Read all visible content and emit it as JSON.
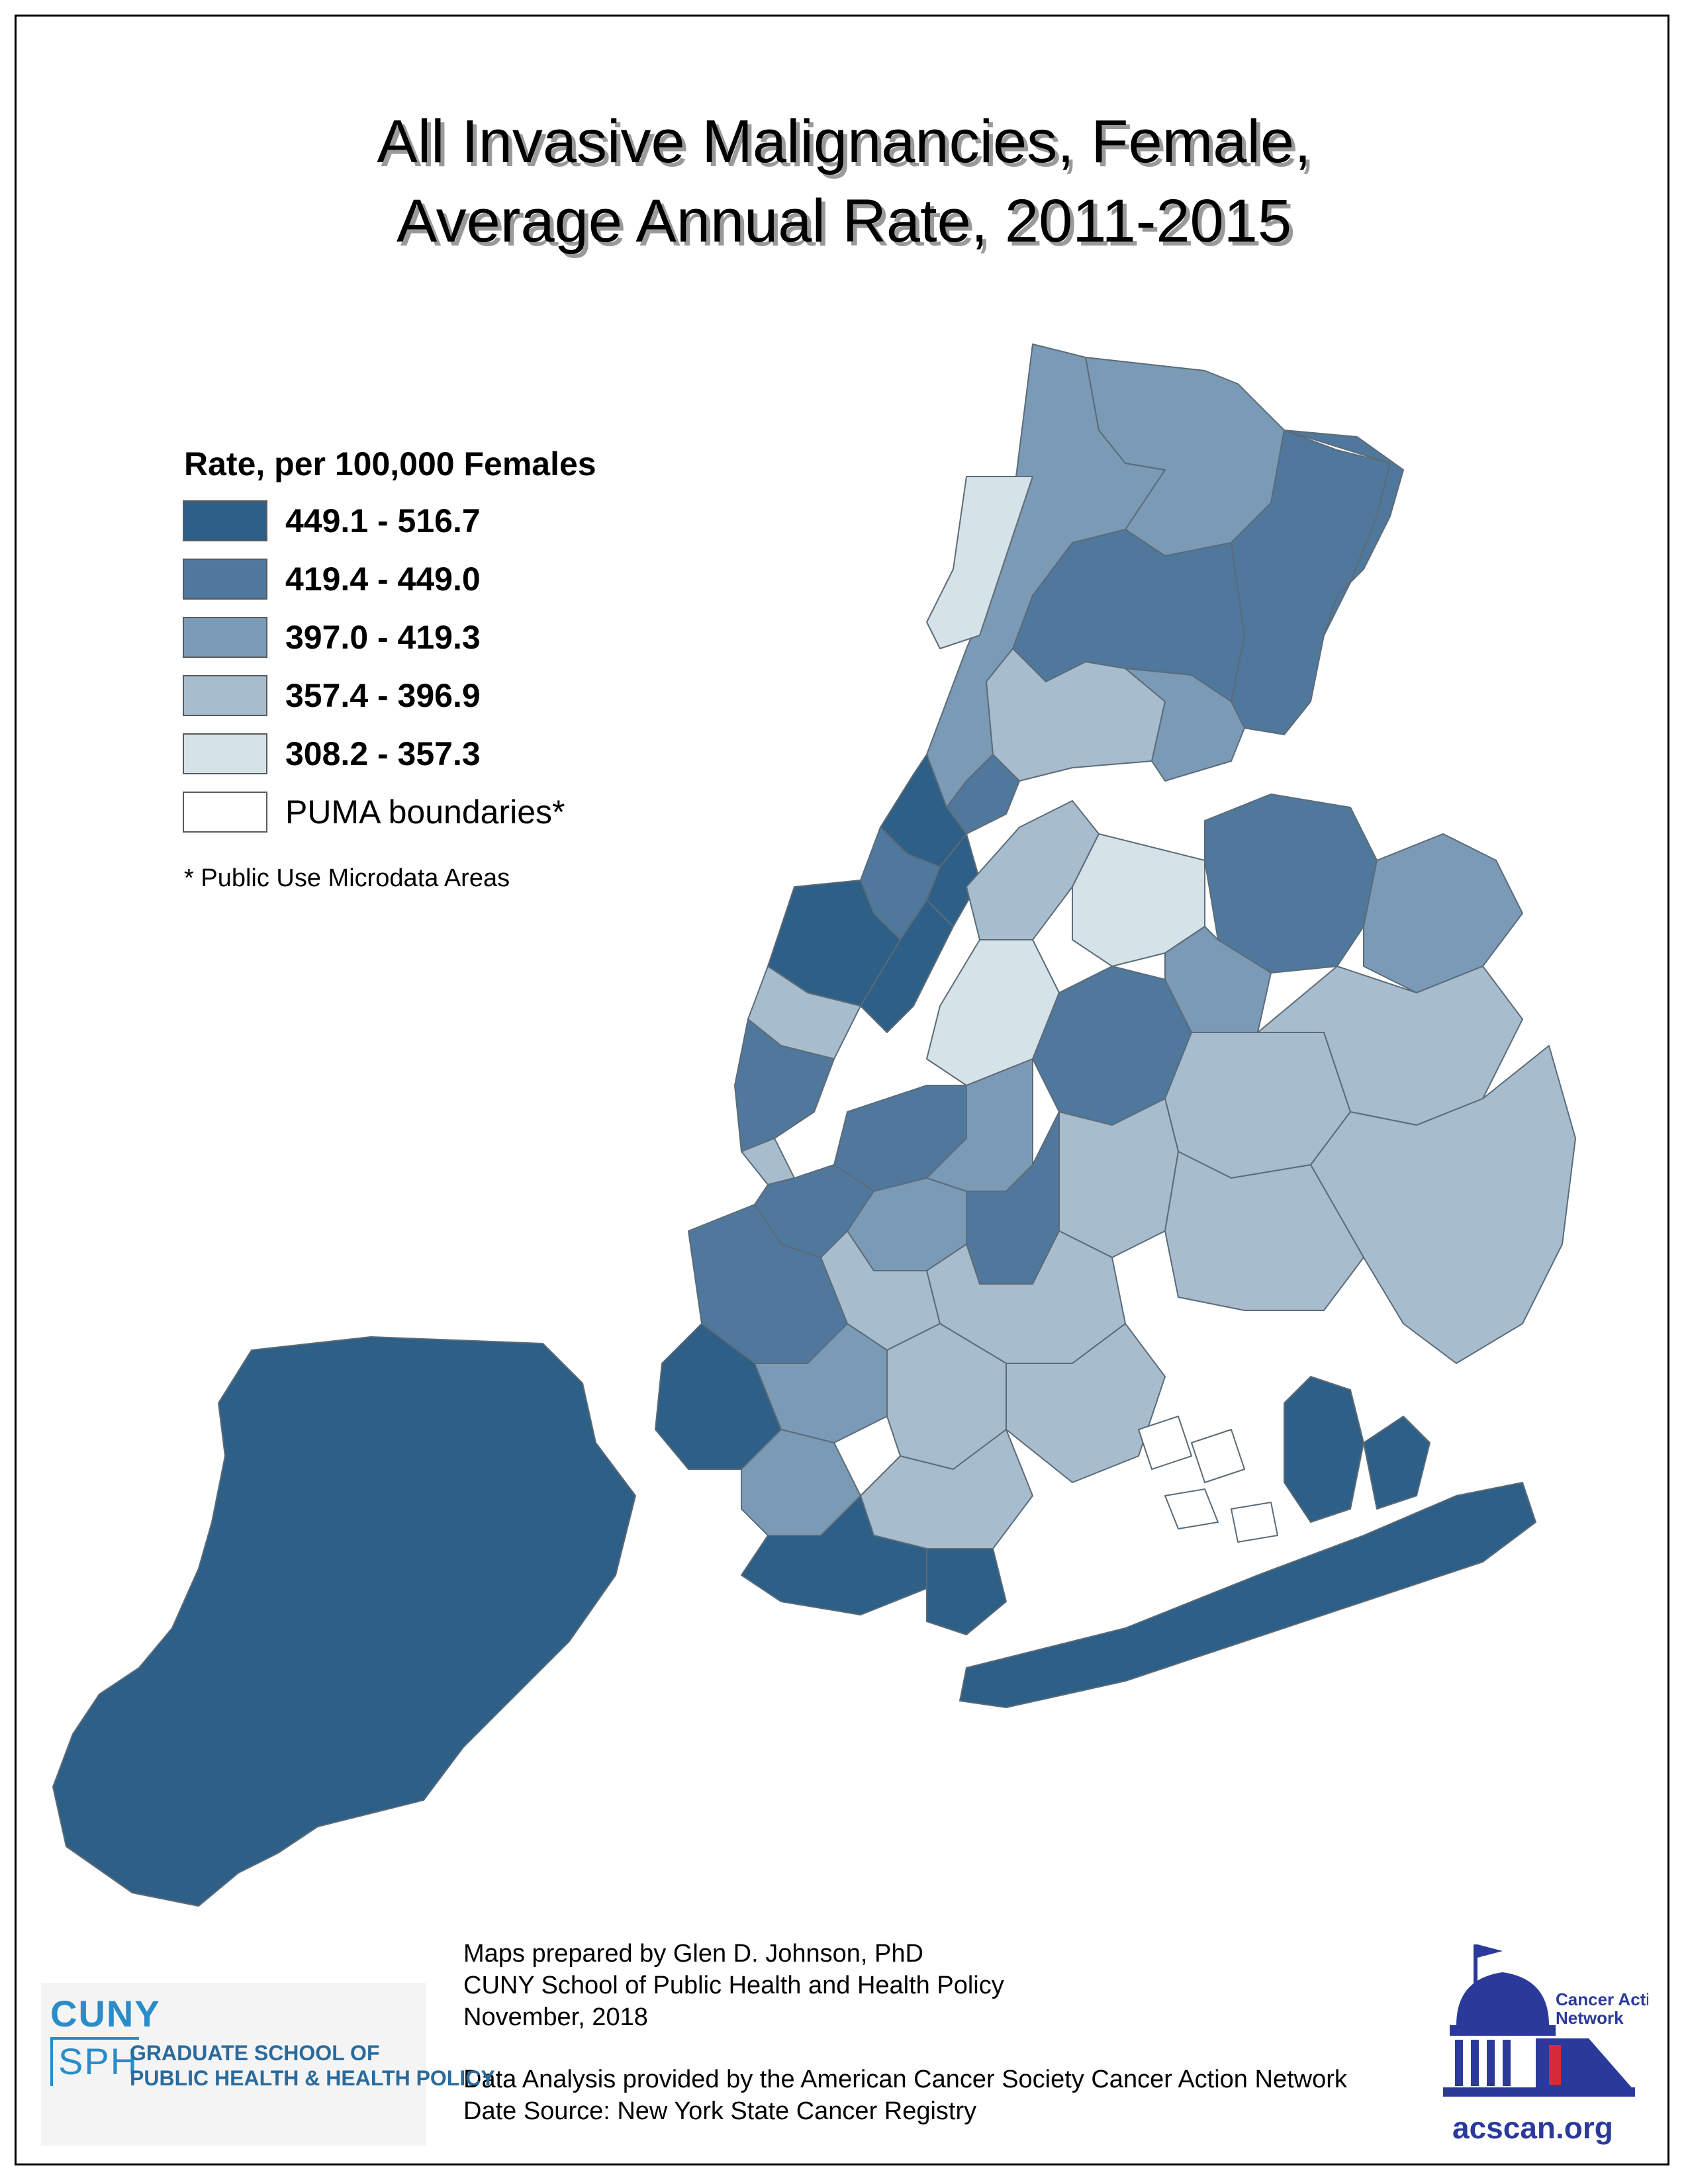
{
  "title": {
    "line1": "All Invasive Malignancies, Female,",
    "line2": "Average Annual Rate, 2011-2015"
  },
  "legend": {
    "title": "Rate, per 100,000 Females",
    "items": [
      {
        "label": "449.1 - 516.7",
        "color": "#2e5f86"
      },
      {
        "label": "419.4 - 449.0",
        "color": "#50789d"
      },
      {
        "label": "397.0 - 419.3",
        "color": "#7b9ab6"
      },
      {
        "label": "357.4 - 396.9",
        "color": "#a7bccd"
      },
      {
        "label": "308.2 - 357.3",
        "color": "#d5e2e8"
      },
      {
        "label": "PUMA boundaries*",
        "color": "#ffffff"
      }
    ],
    "footnote": "* Public Use Microdata Areas"
  },
  "map": {
    "borough_classes": {
      "staten_island": "449.1 - 516.7",
      "manhattan_uptown": "449.1 - 516.7",
      "brooklyn_coney": "449.1 - 516.7",
      "queens_rockaway": "449.1 - 516.7",
      "bronx_north": "419.4 - 449.0",
      "queens_central": "357.4 - 396.9"
    }
  },
  "credits": {
    "line1": "Maps prepared by Glen D. Johnson, PhD",
    "line2": "CUNY School of Public Health and Health Policy",
    "line3": "November, 2018",
    "line4": "Data Analysis provided by the American Cancer Society Cancer Action Network",
    "line5": "Date Source: New York State Cancer Registry"
  },
  "cuny_logo": {
    "word1": "CUNY",
    "word2": "SPH",
    "sub1": "GRADUATE SCHOOL OF",
    "sub2": "PUBLIC HEALTH & HEALTH POLICY"
  },
  "acs_logo": {
    "name": "Cancer Action Network",
    "society": "American Cancer Society",
    "url": "acscan.org",
    "color": "#2b3a9a"
  }
}
